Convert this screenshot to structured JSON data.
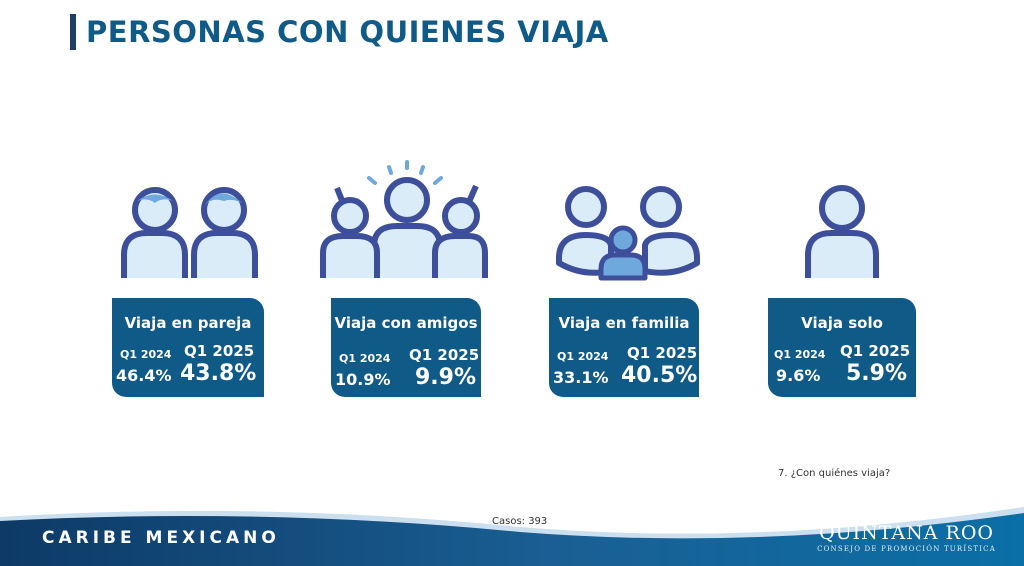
{
  "title": "PERSONAS CON QUIENES VIAJA",
  "categories": [
    {
      "label": "Viaja en pareja",
      "year_prev": "Q1 2024",
      "value_prev": "46.4%",
      "year_curr": "Q1 2025",
      "value_curr": "43.8%"
    },
    {
      "label": "Viaja con amigos",
      "year_prev": "Q1 2024",
      "value_prev": "10.9%",
      "year_curr": "Q1 2025",
      "value_curr": "9.9%"
    },
    {
      "label": "Viaja en familia",
      "year_prev": "Q1 2024",
      "value_prev": "33.1%",
      "year_curr": "Q1 2025",
      "value_curr": "40.5%"
    },
    {
      "label": "Viaja solo",
      "year_prev": "Q1 2024",
      "value_prev": "9.6%",
      "year_curr": "Q1 2025",
      "value_curr": "5.9%"
    }
  ],
  "question": "7. ¿Con quiénes viaja?",
  "cases": "Casos: 393",
  "footer": {
    "left_brand": "CARIBE MEXICANO",
    "right_brand": "QUINTANA ROO",
    "right_sub": "CONSEJO DE PROMOCIÓN TURÍSTICA"
  },
  "colors": {
    "primary": "#0f5a86",
    "icon_stroke": "#3d4f9a",
    "icon_fill": "#d9ecf8",
    "icon_accent": "#6ea8dc"
  }
}
